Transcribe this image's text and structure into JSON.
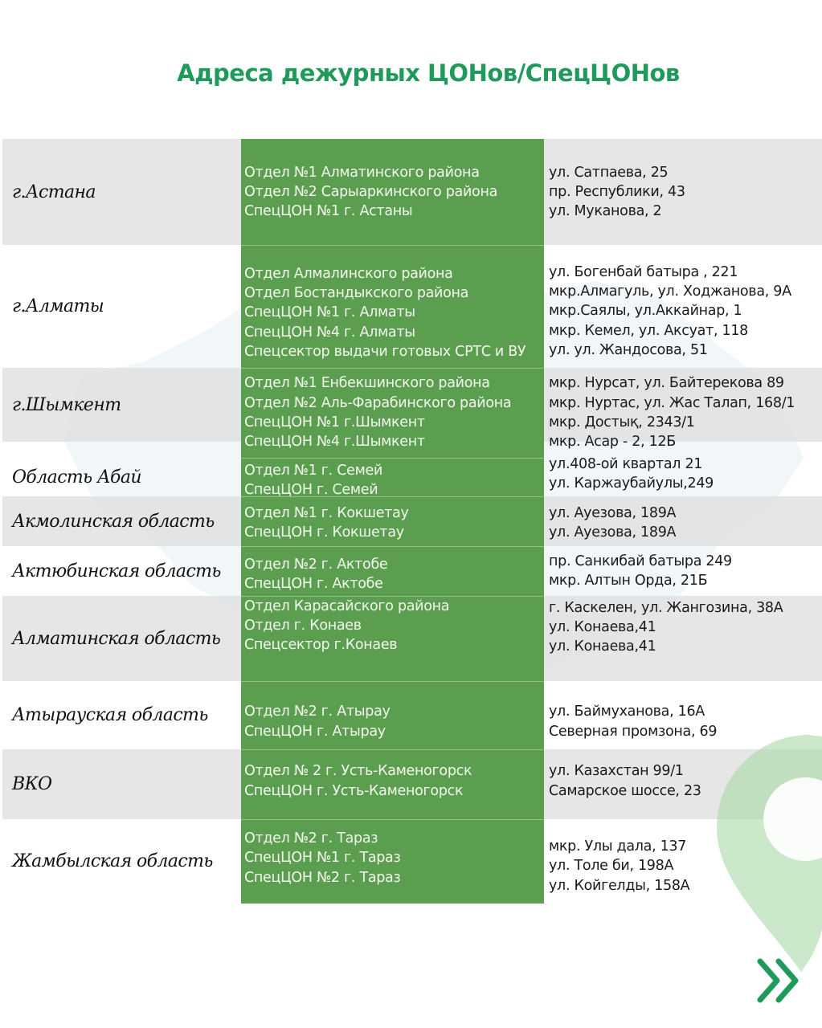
{
  "title": "Адреса дежурных ЦОНов/СпецЦОНов",
  "colors": {
    "title": "#1f9a5b",
    "green_column": "#5c9e4f",
    "gray_row": "#e2e2e2",
    "pin": "#bfe3bf",
    "chevron": "#1f9a5b"
  },
  "icons": {
    "pin": "map-pin-icon",
    "next": "double-chevron-right-icon"
  },
  "rows": [
    {
      "region": "г.Астана",
      "units": [
        "Отдел №1 Алматинского района",
        "Отдел №2  Сарыаркинского района",
        "СпецЦОН №1 г. Астаны"
      ],
      "addresses": [
        "ул. Сатпаева, 25",
        "пр. Республики, 43",
        "ул. Муканова, 2"
      ]
    },
    {
      "region": "г.Алматы",
      "units": [
        "Отдел Алмалинского района",
        "Отдел Бостандыкского района",
        "СпецЦОН №1 г. Алматы",
        "СпецЦОН №4 г. Алматы",
        "Спецсектор выдачи готовых СРТС и ВУ"
      ],
      "addresses": [
        "ул. Богенбай батыра , 221",
        "мкр.Алмагуль, ул. Ходжанова, 9А",
        "мкр.Саялы, ул.Аккайнар, 1",
        "мкр. Кемел, ул. Аксуат, 118",
        "ул. ул. Жандосова, 51"
      ]
    },
    {
      "region": "г.Шымкент",
      "units": [
        "Отдел №1 Енбекшинского района",
        "Отдел №2 Аль-Фарабинского района",
        "СпецЦОН №1 г.Шымкент",
        "СпецЦОН №4 г.Шымкент"
      ],
      "addresses": [
        "мкр. Нурсат, ул. Байтерекова 89",
        "мкр. Нуртас, ул. Жас Талап, 168/1",
        "мкр. Достық, 2343/1",
        "мкр. Асар - 2, 12Б"
      ]
    },
    {
      "region": "Область Абай",
      "units": [
        "Отдел №1 г. Семей",
        "СпецЦОН г. Семей"
      ],
      "addresses": [
        "ул.408-ой квартал 21",
        "ул. Каржаубайулы,249"
      ]
    },
    {
      "region": "Акмолинская область",
      "units": [
        "Отдел №1 г. Кокшетау",
        "СпецЦОН г. Кокшетау"
      ],
      "addresses": [
        "ул. Ауезова, 189А",
        "ул. Ауезова, 189А"
      ]
    },
    {
      "region": "Актюбинская область",
      "units": [
        "Отдел №2 г. Актобе",
        "СпецЦОН г. Актобе"
      ],
      "addresses": [
        "пр. Санкибай батыра 249",
        "мкр. Алтын Орда, 21Б"
      ]
    },
    {
      "region": "Алматинская область",
      "units": [
        "Отдел Карасайского  района",
        "Отдел г. Конаев",
        "Спецсектор г.Конаев"
      ],
      "addresses": [
        "г. Каскелен, ул. Жангозина, 38А",
        "ул. Конаева,41",
        "ул. Конаева,41"
      ]
    },
    {
      "region": "Атырауская область",
      "units": [
        "Отдел №2 г. Атырау",
        "СпецЦОН г. Атырау"
      ],
      "addresses": [
        "ул. Баймуханова, 16А",
        "Северная промзона, 69"
      ]
    },
    {
      "region": "ВКО",
      "units": [
        "Отдел № 2 г. Усть-Каменогорск",
        "СпецЦОН г. Усть-Каменогорск"
      ],
      "addresses": [
        "ул. Казахстан 99/1",
        "Самарское шоссе, 23"
      ]
    },
    {
      "region": "Жамбылская область",
      "units": [
        "Отдел №2 г. Тараз",
        "СпецЦОН №1 г. Тараз",
        "СпецЦОН №2 г. Тараз"
      ],
      "addresses": [
        "мкр. Улы дала, 137",
        "ул. Толе би, 198А",
        "ул. Койгелды, 158А"
      ]
    }
  ]
}
